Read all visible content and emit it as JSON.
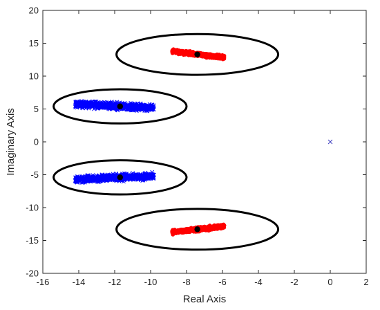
{
  "chart_data": {
    "type": "scatter",
    "title": "",
    "xlabel": "Real Axis",
    "ylabel": "Imaginary Axis",
    "xlim": [
      -16,
      2
    ],
    "ylim": [
      -20,
      20
    ],
    "xticks": [
      -16,
      -14,
      -12,
      -10,
      -8,
      -6,
      -4,
      -2,
      0,
      2
    ],
    "yticks": [
      -20,
      -15,
      -10,
      -5,
      0,
      5,
      10,
      15,
      20
    ],
    "grid": false,
    "colors": {
      "blue_cluster": "#0000ff",
      "red_cluster": "#ff0000",
      "centroid": "#000000",
      "ellipse": "#000000",
      "origin_marker": "#4040c0"
    },
    "clusters": [
      {
        "color": "blue",
        "marker": "x",
        "x_range": [
          -14.2,
          -9.8
        ],
        "y_range": [
          4.4,
          6.5
        ],
        "center": [
          -11.7,
          5.4
        ]
      },
      {
        "color": "blue",
        "marker": "x",
        "x_range": [
          -14.2,
          -9.8
        ],
        "y_range": [
          -6.5,
          -4.4
        ],
        "center": [
          -11.7,
          -5.4
        ]
      },
      {
        "color": "red",
        "marker": "o",
        "x_range": [
          -8.8,
          -5.9
        ],
        "y_range": [
          12.4,
          14.2
        ],
        "center": [
          -7.4,
          13.3
        ]
      },
      {
        "color": "red",
        "marker": "o",
        "x_range": [
          -8.8,
          -5.9
        ],
        "y_range": [
          -14.2,
          -12.4
        ],
        "center": [
          -7.4,
          -13.3
        ]
      }
    ],
    "ellipses": [
      {
        "center": [
          -11.7,
          5.4
        ],
        "half_width": 3.7,
        "half_height": 2.6
      },
      {
        "center": [
          -11.7,
          -5.4
        ],
        "half_width": 3.7,
        "half_height": 2.6
      },
      {
        "center": [
          -7.4,
          13.3
        ],
        "half_width": 4.5,
        "half_height": 3.1
      },
      {
        "center": [
          -7.4,
          -13.3
        ],
        "half_width": 4.5,
        "half_height": 3.1
      }
    ],
    "centroids": [
      {
        "x": -11.7,
        "y": 5.4
      },
      {
        "x": -11.7,
        "y": -5.4
      },
      {
        "x": -7.4,
        "y": 13.3
      },
      {
        "x": -7.4,
        "y": -13.3
      }
    ],
    "origin_marker": {
      "x": 0,
      "y": 0,
      "marker": "x"
    }
  }
}
